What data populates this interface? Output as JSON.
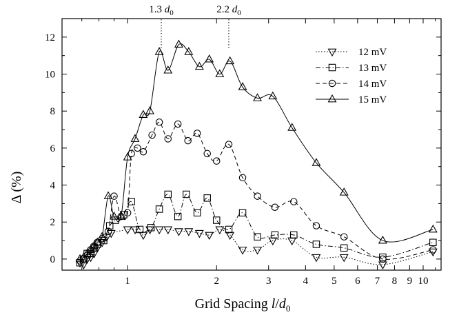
{
  "chart_data": {
    "type": "line",
    "xlabel": {
      "main": "Grid Spacing ",
      "var": "l",
      "slash": "/",
      "sym": "d",
      "sub": "0"
    },
    "ylabel": "Δ (%)",
    "x_scale": "log",
    "xlim": [
      0.6,
      11.5
    ],
    "ylim": [
      -0.6,
      13
    ],
    "x_ticks": [
      {
        "value": 1,
        "label": "1"
      },
      {
        "value": 2,
        "label": "2"
      },
      {
        "value": 3,
        "label": "3"
      },
      {
        "value": 4,
        "label": "4"
      },
      {
        "value": 5,
        "label": "5"
      },
      {
        "value": 6,
        "label": "6"
      },
      {
        "value": 7,
        "label": "7"
      },
      {
        "value": 8,
        "label": "8"
      },
      {
        "value": 9,
        "label": "9"
      },
      {
        "value": 10,
        "label": "10"
      }
    ],
    "y_ticks": [
      {
        "value": 0,
        "label": "0"
      },
      {
        "value": 2,
        "label": "2"
      },
      {
        "value": 4,
        "label": "4"
      },
      {
        "value": 6,
        "label": "6"
      },
      {
        "value": 8,
        "label": "8"
      },
      {
        "value": 10,
        "label": "10"
      },
      {
        "value": 12,
        "label": "12"
      }
    ],
    "annotations": [
      {
        "x": 1.3,
        "prefix": "1.3 ",
        "sym": "d",
        "sub": "0"
      },
      {
        "x": 2.2,
        "prefix": "2.2 ",
        "sym": "d",
        "sub": "0"
      }
    ],
    "legend_position": "top-right",
    "series": [
      {
        "name": "12 mV",
        "marker": "triangle-down",
        "dash": "1.5 2.5",
        "x": [
          0.69,
          0.71,
          0.73,
          0.75,
          0.77,
          0.79,
          0.82,
          0.85,
          0.88,
          1.0,
          1.06,
          1.13,
          1.19,
          1.28,
          1.37,
          1.49,
          1.61,
          1.75,
          1.89,
          2.05,
          2.22,
          2.45,
          2.75,
          3.1,
          3.6,
          4.35,
          5.4,
          7.3,
          10.8
        ],
        "y": [
          -0.2,
          -0.3,
          0.0,
          0.1,
          0.3,
          0.6,
          0.9,
          1.2,
          1.4,
          1.6,
          1.6,
          1.3,
          1.6,
          1.6,
          1.6,
          1.5,
          1.5,
          1.4,
          1.3,
          1.6,
          1.3,
          0.5,
          0.5,
          1.0,
          1.0,
          0.1,
          0.1,
          -0.3,
          0.4
        ]
      },
      {
        "name": "13 mV",
        "marker": "square",
        "dash": "7 3 1.5 3",
        "x": [
          0.69,
          0.71,
          0.73,
          0.75,
          0.77,
          0.79,
          0.83,
          0.87,
          0.91,
          0.97,
          1.03,
          1.1,
          1.2,
          1.28,
          1.37,
          1.48,
          1.58,
          1.72,
          1.86,
          2.0,
          2.2,
          2.45,
          2.75,
          3.15,
          3.65,
          4.35,
          5.4,
          7.3,
          10.8
        ],
        "y": [
          -0.2,
          0.0,
          0.3,
          0.3,
          0.6,
          0.8,
          1.0,
          1.8,
          2.1,
          2.4,
          3.1,
          1.6,
          1.7,
          2.7,
          3.5,
          2.3,
          3.5,
          2.5,
          3.3,
          2.1,
          1.6,
          2.5,
          1.2,
          1.3,
          1.3,
          0.8,
          0.6,
          0.1,
          0.9
        ]
      },
      {
        "name": "14 mV",
        "marker": "circle",
        "dash": "6 4",
        "x": [
          0.69,
          0.71,
          0.73,
          0.75,
          0.77,
          0.79,
          0.82,
          0.86,
          0.9,
          0.95,
          1.0,
          1.03,
          1.08,
          1.13,
          1.21,
          1.28,
          1.37,
          1.48,
          1.6,
          1.72,
          1.86,
          2.0,
          2.2,
          2.45,
          2.75,
          3.15,
          3.65,
          4.35,
          5.4,
          7.3,
          10.8
        ],
        "y": [
          -0.1,
          0.0,
          0.2,
          0.5,
          0.7,
          0.9,
          1.1,
          1.5,
          3.4,
          2.3,
          2.5,
          5.7,
          6.0,
          5.8,
          6.7,
          7.4,
          6.5,
          7.3,
          6.4,
          6.8,
          5.7,
          5.3,
          6.2,
          4.4,
          3.4,
          2.8,
          3.1,
          1.8,
          1.2,
          0.0,
          0.5
        ]
      },
      {
        "name": "15 mV",
        "marker": "triangle-up",
        "dash": "",
        "x": [
          0.69,
          0.71,
          0.73,
          0.75,
          0.77,
          0.79,
          0.82,
          0.86,
          0.9,
          0.95,
          1.0,
          1.06,
          1.13,
          1.19,
          1.28,
          1.37,
          1.49,
          1.61,
          1.75,
          1.89,
          2.05,
          2.22,
          2.45,
          2.75,
          3.1,
          3.6,
          4.35,
          5.4,
          7.3,
          10.8
        ],
        "y": [
          0.0,
          0.1,
          0.3,
          0.5,
          0.7,
          0.9,
          1.2,
          3.4,
          2.3,
          2.3,
          5.5,
          6.5,
          7.8,
          8.0,
          11.2,
          10.2,
          11.6,
          11.2,
          10.4,
          10.8,
          10.0,
          10.7,
          9.3,
          8.7,
          8.8,
          7.1,
          5.2,
          3.6,
          1.0,
          1.6
        ]
      }
    ]
  }
}
